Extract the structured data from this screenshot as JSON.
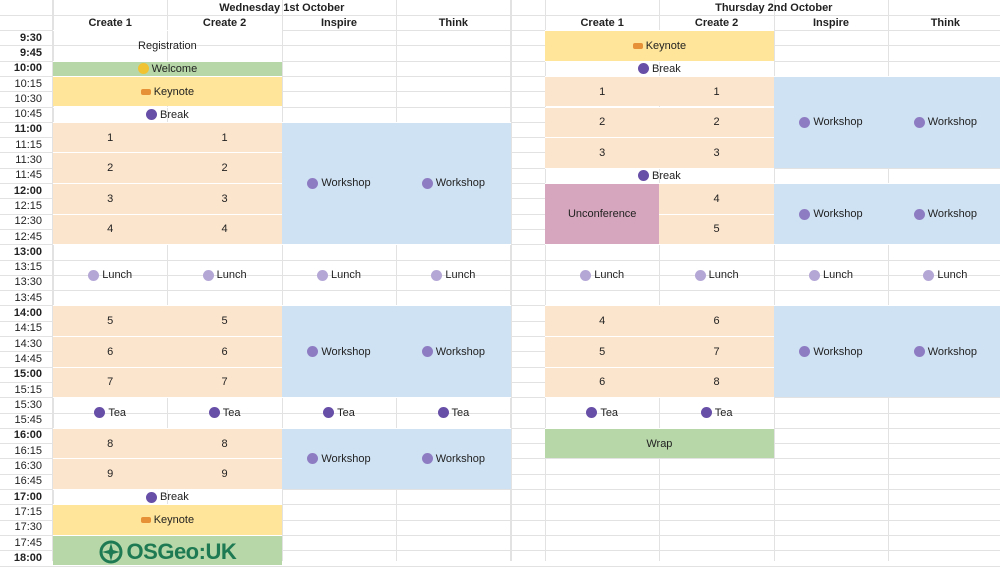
{
  "days": [
    {
      "title": "Wednesday 1st October",
      "columns": [
        "Create 1",
        "Create 2",
        "Inspire",
        "Think"
      ],
      "events": [
        {
          "label": "Registration",
          "icon": "",
          "col_start": 0,
          "col_span": 2,
          "row_start": 0,
          "row_span": 2,
          "color": ""
        },
        {
          "label": "Welcome",
          "icon": "wave-icon",
          "col_start": 0,
          "col_span": 2,
          "row_start": 2,
          "row_span": 1,
          "color": "#b7d7a8"
        },
        {
          "label": "Keynote",
          "icon": "key-icon",
          "col_start": 0,
          "col_span": 2,
          "row_start": 3,
          "row_span": 2,
          "color": "#ffe599"
        },
        {
          "label": "Break",
          "icon": "coffee-icon",
          "col_start": 0,
          "col_span": 2,
          "row_start": 5,
          "row_span": 1,
          "color": ""
        },
        {
          "label": "1",
          "icon": "",
          "col_start": 0,
          "col_span": 1,
          "row_start": 6,
          "row_span": 2,
          "color": "#fce5cd"
        },
        {
          "label": "1",
          "icon": "",
          "col_start": 1,
          "col_span": 1,
          "row_start": 6,
          "row_span": 2,
          "color": "#fce5cd"
        },
        {
          "label": "2",
          "icon": "",
          "col_start": 0,
          "col_span": 1,
          "row_start": 8,
          "row_span": 2,
          "color": "#fce5cd"
        },
        {
          "label": "2",
          "icon": "",
          "col_start": 1,
          "col_span": 1,
          "row_start": 8,
          "row_span": 2,
          "color": "#fce5cd"
        },
        {
          "label": "3",
          "icon": "",
          "col_start": 0,
          "col_span": 1,
          "row_start": 10,
          "row_span": 2,
          "color": "#fce5cd"
        },
        {
          "label": "3",
          "icon": "",
          "col_start": 1,
          "col_span": 1,
          "row_start": 10,
          "row_span": 2,
          "color": "#fce5cd"
        },
        {
          "label": "4",
          "icon": "",
          "col_start": 0,
          "col_span": 1,
          "row_start": 12,
          "row_span": 2,
          "color": "#fce5cd"
        },
        {
          "label": "4",
          "icon": "",
          "col_start": 1,
          "col_span": 1,
          "row_start": 12,
          "row_span": 2,
          "color": "#fce5cd"
        },
        {
          "label": "Workshop",
          "icon": "workshop-icon",
          "col_start": 2,
          "col_span": 1,
          "row_start": 6,
          "row_span": 8,
          "color": "#cfe2f3"
        },
        {
          "label": "Workshop",
          "icon": "workshop-icon",
          "col_start": 3,
          "col_span": 1,
          "row_start": 6,
          "row_span": 8,
          "color": "#cfe2f3"
        },
        {
          "label": "Lunch",
          "icon": "lunch-icon",
          "col_start": 0,
          "col_span": 1,
          "row_start": 14,
          "row_span": 4,
          "color": ""
        },
        {
          "label": "Lunch",
          "icon": "lunch-icon",
          "col_start": 1,
          "col_span": 1,
          "row_start": 14,
          "row_span": 4,
          "color": ""
        },
        {
          "label": "Lunch",
          "icon": "lunch-icon",
          "col_start": 2,
          "col_span": 1,
          "row_start": 14,
          "row_span": 4,
          "color": ""
        },
        {
          "label": "Lunch",
          "icon": "lunch-icon",
          "col_start": 3,
          "col_span": 1,
          "row_start": 14,
          "row_span": 4,
          "color": ""
        },
        {
          "label": "5",
          "icon": "",
          "col_start": 0,
          "col_span": 1,
          "row_start": 18,
          "row_span": 2,
          "color": "#fce5cd"
        },
        {
          "label": "5",
          "icon": "",
          "col_start": 1,
          "col_span": 1,
          "row_start": 18,
          "row_span": 2,
          "color": "#fce5cd"
        },
        {
          "label": "6",
          "icon": "",
          "col_start": 0,
          "col_span": 1,
          "row_start": 20,
          "row_span": 2,
          "color": "#fce5cd"
        },
        {
          "label": "6",
          "icon": "",
          "col_start": 1,
          "col_span": 1,
          "row_start": 20,
          "row_span": 2,
          "color": "#fce5cd"
        },
        {
          "label": "7",
          "icon": "",
          "col_start": 0,
          "col_span": 1,
          "row_start": 22,
          "row_span": 2,
          "color": "#fce5cd"
        },
        {
          "label": "7",
          "icon": "",
          "col_start": 1,
          "col_span": 1,
          "row_start": 22,
          "row_span": 2,
          "color": "#fce5cd"
        },
        {
          "label": "Workshop",
          "icon": "workshop-icon",
          "col_start": 2,
          "col_span": 1,
          "row_start": 18,
          "row_span": 6,
          "color": "#cfe2f3"
        },
        {
          "label": "Workshop",
          "icon": "workshop-icon",
          "col_start": 3,
          "col_span": 1,
          "row_start": 18,
          "row_span": 6,
          "color": "#cfe2f3"
        },
        {
          "label": "Tea",
          "icon": "coffee-icon",
          "col_start": 0,
          "col_span": 1,
          "row_start": 24,
          "row_span": 2,
          "color": ""
        },
        {
          "label": "Tea",
          "icon": "coffee-icon",
          "col_start": 1,
          "col_span": 1,
          "row_start": 24,
          "row_span": 2,
          "color": ""
        },
        {
          "label": "Tea",
          "icon": "coffee-icon",
          "col_start": 2,
          "col_span": 1,
          "row_start": 24,
          "row_span": 2,
          "color": ""
        },
        {
          "label": "Tea",
          "icon": "coffee-icon",
          "col_start": 3,
          "col_span": 1,
          "row_start": 24,
          "row_span": 2,
          "color": ""
        },
        {
          "label": "8",
          "icon": "",
          "col_start": 0,
          "col_span": 1,
          "row_start": 26,
          "row_span": 2,
          "color": "#fce5cd"
        },
        {
          "label": "8",
          "icon": "",
          "col_start": 1,
          "col_span": 1,
          "row_start": 26,
          "row_span": 2,
          "color": "#fce5cd"
        },
        {
          "label": "9",
          "icon": "",
          "col_start": 0,
          "col_span": 1,
          "row_start": 28,
          "row_span": 2,
          "color": "#fce5cd"
        },
        {
          "label": "9",
          "icon": "",
          "col_start": 1,
          "col_span": 1,
          "row_start": 28,
          "row_span": 2,
          "color": "#fce5cd"
        },
        {
          "label": "Workshop",
          "icon": "workshop-icon",
          "col_start": 2,
          "col_span": 1,
          "row_start": 26,
          "row_span": 4,
          "color": "#cfe2f3"
        },
        {
          "label": "Workshop",
          "icon": "workshop-icon",
          "col_start": 3,
          "col_span": 1,
          "row_start": 26,
          "row_span": 4,
          "color": "#cfe2f3"
        },
        {
          "label": "Break",
          "icon": "coffee-icon",
          "col_start": 0,
          "col_span": 2,
          "row_start": 30,
          "row_span": 1,
          "color": ""
        },
        {
          "label": "Keynote",
          "icon": "key-icon",
          "col_start": 0,
          "col_span": 2,
          "row_start": 31,
          "row_span": 2,
          "color": "#ffe599"
        },
        {
          "label": "OSGeo:UK",
          "icon": "osgeo-logo",
          "col_start": 0,
          "col_span": 2,
          "row_start": 33,
          "row_span": 2,
          "color": "#b7d7a8",
          "logo": true
        }
      ]
    },
    {
      "title": "Thursday 2nd October",
      "columns": [
        "Create 1",
        "Create 2",
        "Inspire",
        "Think"
      ],
      "events": [
        {
          "label": "Keynote",
          "icon": "key-icon",
          "col_start": 0,
          "col_span": 2,
          "row_start": 0,
          "row_span": 2,
          "color": "#ffe599"
        },
        {
          "label": "Break",
          "icon": "coffee-icon",
          "col_start": 0,
          "col_span": 2,
          "row_start": 2,
          "row_span": 1,
          "color": ""
        },
        {
          "label": "1",
          "icon": "",
          "col_start": 0,
          "col_span": 1,
          "row_start": 3,
          "row_span": 2,
          "color": "#fce5cd"
        },
        {
          "label": "1",
          "icon": "",
          "col_start": 1,
          "col_span": 1,
          "row_start": 3,
          "row_span": 2,
          "color": "#fce5cd"
        },
        {
          "label": "2",
          "icon": "",
          "col_start": 0,
          "col_span": 1,
          "row_start": 5,
          "row_span": 2,
          "color": "#fce5cd"
        },
        {
          "label": "2",
          "icon": "",
          "col_start": 1,
          "col_span": 1,
          "row_start": 5,
          "row_span": 2,
          "color": "#fce5cd"
        },
        {
          "label": "3",
          "icon": "",
          "col_start": 0,
          "col_span": 1,
          "row_start": 7,
          "row_span": 2,
          "color": "#fce5cd"
        },
        {
          "label": "3",
          "icon": "",
          "col_start": 1,
          "col_span": 1,
          "row_start": 7,
          "row_span": 2,
          "color": "#fce5cd"
        },
        {
          "label": "Workshop",
          "icon": "workshop-icon",
          "col_start": 2,
          "col_span": 1,
          "row_start": 3,
          "row_span": 6,
          "color": "#cfe2f3"
        },
        {
          "label": "Workshop",
          "icon": "workshop-icon",
          "col_start": 3,
          "col_span": 1,
          "row_start": 3,
          "row_span": 6,
          "color": "#cfe2f3"
        },
        {
          "label": "Break",
          "icon": "coffee-icon",
          "col_start": 0,
          "col_span": 2,
          "row_start": 9,
          "row_span": 1,
          "color": ""
        },
        {
          "label": "Unconference",
          "icon": "",
          "col_start": 0,
          "col_span": 1,
          "row_start": 10,
          "row_span": 4,
          "color": "#d5a6bd"
        },
        {
          "label": "4",
          "icon": "",
          "col_start": 1,
          "col_span": 1,
          "row_start": 10,
          "row_span": 2,
          "color": "#fce5cd"
        },
        {
          "label": "5",
          "icon": "",
          "col_start": 1,
          "col_span": 1,
          "row_start": 12,
          "row_span": 2,
          "color": "#fce5cd"
        },
        {
          "label": "Workshop",
          "icon": "workshop-icon",
          "col_start": 2,
          "col_span": 1,
          "row_start": 10,
          "row_span": 4,
          "color": "#cfe2f3"
        },
        {
          "label": "Workshop",
          "icon": "workshop-icon",
          "col_start": 3,
          "col_span": 1,
          "row_start": 10,
          "row_span": 4,
          "color": "#cfe2f3"
        },
        {
          "label": "Lunch",
          "icon": "lunch-icon",
          "col_start": 0,
          "col_span": 1,
          "row_start": 14,
          "row_span": 4,
          "color": ""
        },
        {
          "label": "Lunch",
          "icon": "lunch-icon",
          "col_start": 1,
          "col_span": 1,
          "row_start": 14,
          "row_span": 4,
          "color": ""
        },
        {
          "label": "Lunch",
          "icon": "lunch-icon",
          "col_start": 2,
          "col_span": 1,
          "row_start": 14,
          "row_span": 4,
          "color": ""
        },
        {
          "label": "Lunch",
          "icon": "lunch-icon",
          "col_start": 3,
          "col_span": 1,
          "row_start": 14,
          "row_span": 4,
          "color": ""
        },
        {
          "label": "4",
          "icon": "",
          "col_start": 0,
          "col_span": 1,
          "row_start": 18,
          "row_span": 2,
          "color": "#fce5cd"
        },
        {
          "label": "6",
          "icon": "",
          "col_start": 1,
          "col_span": 1,
          "row_start": 18,
          "row_span": 2,
          "color": "#fce5cd"
        },
        {
          "label": "5",
          "icon": "",
          "col_start": 0,
          "col_span": 1,
          "row_start": 20,
          "row_span": 2,
          "color": "#fce5cd"
        },
        {
          "label": "7",
          "icon": "",
          "col_start": 1,
          "col_span": 1,
          "row_start": 20,
          "row_span": 2,
          "color": "#fce5cd"
        },
        {
          "label": "6",
          "icon": "",
          "col_start": 0,
          "col_span": 1,
          "row_start": 22,
          "row_span": 2,
          "color": "#fce5cd"
        },
        {
          "label": "8",
          "icon": "",
          "col_start": 1,
          "col_span": 1,
          "row_start": 22,
          "row_span": 2,
          "color": "#fce5cd"
        },
        {
          "label": "Workshop",
          "icon": "workshop-icon",
          "col_start": 2,
          "col_span": 1,
          "row_start": 18,
          "row_span": 6,
          "color": "#cfe2f3"
        },
        {
          "label": "Workshop",
          "icon": "workshop-icon",
          "col_start": 3,
          "col_span": 1,
          "row_start": 18,
          "row_span": 6,
          "color": "#cfe2f3"
        },
        {
          "label": "Tea",
          "icon": "coffee-icon",
          "col_start": 0,
          "col_span": 1,
          "row_start": 24,
          "row_span": 2,
          "color": ""
        },
        {
          "label": "Tea",
          "icon": "coffee-icon",
          "col_start": 1,
          "col_span": 1,
          "row_start": 24,
          "row_span": 2,
          "color": ""
        },
        {
          "label": "Wrap",
          "icon": "",
          "col_start": 0,
          "col_span": 2,
          "row_start": 26,
          "row_span": 2,
          "color": "#b7d7a8"
        }
      ]
    }
  ],
  "times": [
    {
      "label": "9:30",
      "major": true
    },
    {
      "label": "9:45",
      "major": true
    },
    {
      "label": "10:00",
      "major": true
    },
    {
      "label": "10:15",
      "major": false
    },
    {
      "label": "10:30",
      "major": false
    },
    {
      "label": "10:45",
      "major": false
    },
    {
      "label": "11:00",
      "major": true
    },
    {
      "label": "11:15",
      "major": false
    },
    {
      "label": "11:30",
      "major": false
    },
    {
      "label": "11:45",
      "major": false
    },
    {
      "label": "12:00",
      "major": true
    },
    {
      "label": "12:15",
      "major": false
    },
    {
      "label": "12:30",
      "major": false
    },
    {
      "label": "12:45",
      "major": false
    },
    {
      "label": "13:00",
      "major": true
    },
    {
      "label": "13:15",
      "major": false
    },
    {
      "label": "13:30",
      "major": false
    },
    {
      "label": "13:45",
      "major": false
    },
    {
      "label": "14:00",
      "major": true
    },
    {
      "label": "14:15",
      "major": false
    },
    {
      "label": "14:30",
      "major": false
    },
    {
      "label": "14:45",
      "major": false
    },
    {
      "label": "15:00",
      "major": true
    },
    {
      "label": "15:15",
      "major": false
    },
    {
      "label": "15:30",
      "major": false
    },
    {
      "label": "15:45",
      "major": false
    },
    {
      "label": "16:00",
      "major": true
    },
    {
      "label": "16:15",
      "major": false
    },
    {
      "label": "16:30",
      "major": false
    },
    {
      "label": "16:45",
      "major": false
    },
    {
      "label": "17:00",
      "major": true
    },
    {
      "label": "17:15",
      "major": false
    },
    {
      "label": "17:30",
      "major": false
    },
    {
      "label": "17:45",
      "major": false
    },
    {
      "label": "18:00",
      "major": true
    }
  ],
  "icon_colors": {
    "wave-icon": "#f1c232",
    "key-icon": "#e69138",
    "coffee-icon": "#674ea7",
    "lunch-icon": "#b4a7d6",
    "workshop-icon": "#8e7cc3",
    "osgeo-logo": "#1e7a52"
  }
}
